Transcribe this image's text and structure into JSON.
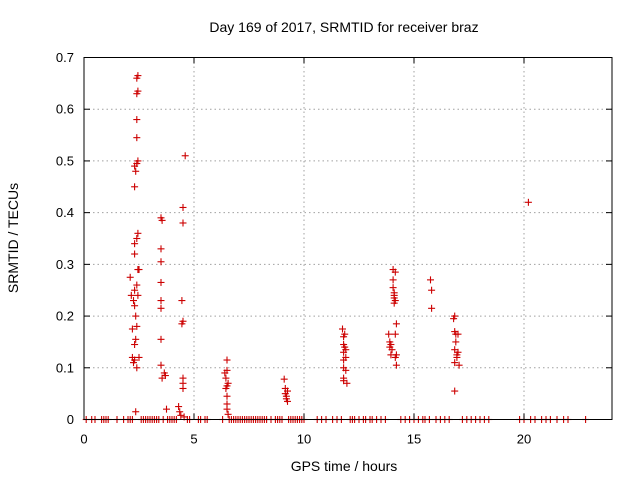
{
  "chart_data": {
    "type": "scatter",
    "title": "Day 169 of 2017, SRMTID for receiver braz",
    "xlabel": "GPS time / hours",
    "ylabel": "SRMTID / TECUs",
    "xlim": [
      0,
      24
    ],
    "ylim": [
      0,
      0.7
    ],
    "xticks": [
      "0",
      "5",
      "10",
      "15",
      "20"
    ],
    "xtick_values": [
      0,
      5,
      10,
      15,
      20
    ],
    "yticks": [
      "0",
      "0.1",
      "0.2",
      "0.3",
      "0.4",
      "0.5",
      "0.6",
      "0.7"
    ],
    "ytick_values": [
      0,
      0.1,
      0.2,
      0.3,
      0.4,
      0.5,
      0.6,
      0.7
    ],
    "grid": true,
    "marker": "+",
    "color": "#cc0000",
    "series": [
      {
        "name": "SRMTID",
        "points": [
          [
            2.1,
            0.275
          ],
          [
            2.15,
            0.24
          ],
          [
            2.2,
            0.175
          ],
          [
            2.2,
            0.12
          ],
          [
            2.25,
            0.11
          ],
          [
            2.25,
            0.23
          ],
          [
            2.3,
            0.49
          ],
          [
            2.3,
            0.45
          ],
          [
            2.3,
            0.34
          ],
          [
            2.3,
            0.32
          ],
          [
            2.3,
            0.25
          ],
          [
            2.3,
            0.22
          ],
          [
            2.3,
            0.145
          ],
          [
            2.3,
            0.115
          ],
          [
            2.35,
            0.48
          ],
          [
            2.35,
            0.2
          ],
          [
            2.35,
            0.155
          ],
          [
            2.35,
            0.015
          ],
          [
            2.4,
            0.66
          ],
          [
            2.4,
            0.63
          ],
          [
            2.4,
            0.58
          ],
          [
            2.4,
            0.545
          ],
          [
            2.4,
            0.495
          ],
          [
            2.4,
            0.35
          ],
          [
            2.4,
            0.26
          ],
          [
            2.4,
            0.18
          ],
          [
            2.4,
            0.1
          ],
          [
            2.45,
            0.665
          ],
          [
            2.45,
            0.635
          ],
          [
            2.45,
            0.5
          ],
          [
            2.45,
            0.36
          ],
          [
            2.45,
            0.29
          ],
          [
            2.45,
            0.24
          ],
          [
            2.5,
            0.29
          ],
          [
            2.5,
            0.12
          ],
          [
            3.5,
            0.39
          ],
          [
            3.55,
            0.385
          ],
          [
            3.5,
            0.33
          ],
          [
            3.5,
            0.305
          ],
          [
            3.5,
            0.265
          ],
          [
            3.5,
            0.23
          ],
          [
            3.5,
            0.215
          ],
          [
            3.5,
            0.155
          ],
          [
            3.5,
            0.105
          ],
          [
            3.55,
            0.08
          ],
          [
            3.65,
            0.09
          ],
          [
            3.7,
            0.085
          ],
          [
            3.75,
            0.02
          ],
          [
            4.3,
            0.025
          ],
          [
            4.35,
            0.015
          ],
          [
            4.4,
            0.008
          ],
          [
            4.45,
            0.185
          ],
          [
            4.45,
            0.23
          ],
          [
            4.5,
            0.41
          ],
          [
            4.5,
            0.38
          ],
          [
            4.5,
            0.19
          ],
          [
            4.5,
            0.08
          ],
          [
            4.5,
            0.07
          ],
          [
            4.5,
            0.06
          ],
          [
            4.55,
            0.005
          ],
          [
            4.6,
            0.51
          ],
          [
            6.4,
            0.09
          ],
          [
            6.45,
            0.08
          ],
          [
            6.45,
            0.06
          ],
          [
            6.5,
            0.115
          ],
          [
            6.5,
            0.095
          ],
          [
            6.5,
            0.065
          ],
          [
            6.5,
            0.045
          ],
          [
            6.5,
            0.03
          ],
          [
            6.5,
            0.02
          ],
          [
            6.55,
            0.07
          ],
          [
            6.55,
            0.01
          ],
          [
            9.1,
            0.078
          ],
          [
            9.15,
            0.06
          ],
          [
            9.15,
            0.05
          ],
          [
            9.2,
            0.045
          ],
          [
            9.2,
            0.04
          ],
          [
            9.25,
            0.055
          ],
          [
            9.25,
            0.035
          ],
          [
            11.75,
            0.175
          ],
          [
            11.8,
            0.16
          ],
          [
            11.8,
            0.145
          ],
          [
            11.8,
            0.13
          ],
          [
            11.8,
            0.115
          ],
          [
            11.8,
            0.1
          ],
          [
            11.8,
            0.08
          ],
          [
            11.8,
            0.075
          ],
          [
            11.85,
            0.165
          ],
          [
            11.85,
            0.14
          ],
          [
            11.9,
            0.135
          ],
          [
            11.9,
            0.12
          ],
          [
            11.9,
            0.095
          ],
          [
            11.95,
            0.07
          ],
          [
            13.85,
            0.165
          ],
          [
            13.9,
            0.15
          ],
          [
            13.9,
            0.14
          ],
          [
            13.95,
            0.145
          ],
          [
            13.95,
            0.125
          ],
          [
            14.0,
            0.135
          ],
          [
            14.05,
            0.29
          ],
          [
            14.05,
            0.27
          ],
          [
            14.05,
            0.255
          ],
          [
            14.1,
            0.245
          ],
          [
            14.1,
            0.235
          ],
          [
            14.1,
            0.225
          ],
          [
            14.1,
            0.24
          ],
          [
            14.15,
            0.285
          ],
          [
            14.15,
            0.23
          ],
          [
            14.15,
            0.165
          ],
          [
            14.15,
            0.12
          ],
          [
            14.2,
            0.185
          ],
          [
            14.2,
            0.125
          ],
          [
            14.2,
            0.105
          ],
          [
            15.75,
            0.27
          ],
          [
            15.8,
            0.25
          ],
          [
            15.8,
            0.215
          ],
          [
            16.8,
            0.195
          ],
          [
            16.85,
            0.2
          ],
          [
            16.85,
            0.17
          ],
          [
            16.85,
            0.135
          ],
          [
            16.85,
            0.11
          ],
          [
            16.85,
            0.055
          ],
          [
            16.9,
            0.165
          ],
          [
            16.9,
            0.15
          ],
          [
            16.95,
            0.125
          ],
          [
            16.95,
            0.12
          ],
          [
            17.0,
            0.165
          ],
          [
            17.0,
            0.13
          ],
          [
            17.05,
            0.105
          ],
          [
            20.2,
            0.42
          ],
          [
            0.1,
            0
          ],
          [
            0.35,
            0
          ],
          [
            0.5,
            0
          ],
          [
            0.8,
            0
          ],
          [
            0.9,
            0
          ],
          [
            1.0,
            0
          ],
          [
            1.1,
            0
          ],
          [
            1.5,
            0
          ],
          [
            1.8,
            0
          ],
          [
            2.0,
            0
          ],
          [
            2.1,
            0
          ],
          [
            2.2,
            0
          ],
          [
            2.6,
            0
          ],
          [
            2.7,
            0
          ],
          [
            2.8,
            0
          ],
          [
            2.9,
            0
          ],
          [
            3.0,
            0
          ],
          [
            3.1,
            0
          ],
          [
            3.2,
            0
          ],
          [
            3.3,
            0
          ],
          [
            3.4,
            0
          ],
          [
            3.6,
            0
          ],
          [
            3.8,
            0
          ],
          [
            3.9,
            0
          ],
          [
            4.0,
            0
          ],
          [
            4.1,
            0
          ],
          [
            4.2,
            0
          ],
          [
            4.7,
            0
          ],
          [
            4.8,
            0
          ],
          [
            5.2,
            0
          ],
          [
            5.3,
            0
          ],
          [
            5.5,
            0
          ],
          [
            5.6,
            0
          ],
          [
            6.3,
            0
          ],
          [
            6.6,
            0
          ],
          [
            6.7,
            0
          ],
          [
            6.8,
            0
          ],
          [
            6.9,
            0
          ],
          [
            7.0,
            0
          ],
          [
            7.1,
            0
          ],
          [
            7.2,
            0
          ],
          [
            7.3,
            0
          ],
          [
            7.4,
            0
          ],
          [
            7.5,
            0
          ],
          [
            7.6,
            0
          ],
          [
            7.7,
            0
          ],
          [
            7.8,
            0
          ],
          [
            7.9,
            0
          ],
          [
            8.0,
            0
          ],
          [
            8.1,
            0
          ],
          [
            8.2,
            0
          ],
          [
            8.3,
            0
          ],
          [
            8.5,
            0
          ],
          [
            8.7,
            0
          ],
          [
            8.8,
            0
          ],
          [
            8.9,
            0
          ],
          [
            9.0,
            0
          ],
          [
            9.3,
            0
          ],
          [
            9.4,
            0
          ],
          [
            9.5,
            0
          ],
          [
            9.6,
            0
          ],
          [
            9.7,
            0
          ],
          [
            9.8,
            0
          ],
          [
            9.9,
            0
          ],
          [
            10.0,
            0
          ],
          [
            10.6,
            0
          ],
          [
            10.8,
            0
          ],
          [
            11.0,
            0
          ],
          [
            11.3,
            0
          ],
          [
            11.5,
            0
          ],
          [
            11.7,
            0
          ],
          [
            12.1,
            0
          ],
          [
            12.2,
            0
          ],
          [
            12.3,
            0
          ],
          [
            12.5,
            0
          ],
          [
            12.7,
            0
          ],
          [
            12.8,
            0
          ],
          [
            13.0,
            0
          ],
          [
            13.1,
            0
          ],
          [
            13.3,
            0
          ],
          [
            13.5,
            0
          ],
          [
            13.7,
            0
          ],
          [
            14.4,
            0
          ],
          [
            14.6,
            0
          ],
          [
            14.8,
            0
          ],
          [
            15.0,
            0
          ],
          [
            15.2,
            0
          ],
          [
            15.4,
            0
          ],
          [
            15.5,
            0
          ],
          [
            15.7,
            0
          ],
          [
            16.0,
            0
          ],
          [
            16.2,
            0
          ],
          [
            16.4,
            0
          ],
          [
            16.6,
            0
          ],
          [
            17.2,
            0
          ],
          [
            17.4,
            0
          ],
          [
            17.6,
            0
          ],
          [
            17.8,
            0
          ],
          [
            18.0,
            0
          ],
          [
            18.2,
            0
          ],
          [
            18.4,
            0
          ],
          [
            19.8,
            0
          ],
          [
            20.0,
            0
          ],
          [
            20.3,
            0
          ],
          [
            20.5,
            0
          ],
          [
            20.8,
            0
          ],
          [
            21.0,
            0
          ],
          [
            21.2,
            0
          ],
          [
            21.5,
            0
          ],
          [
            21.8,
            0
          ],
          [
            22.0,
            0
          ],
          [
            22.8,
            0
          ]
        ]
      }
    ]
  }
}
